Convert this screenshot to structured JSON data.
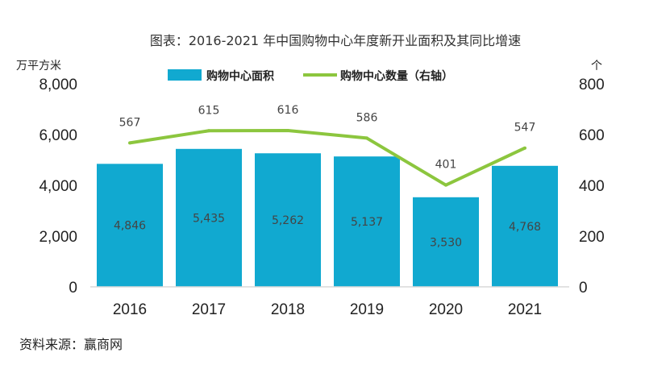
{
  "chart_data": {
    "type": "bar+line",
    "title": "图表：2016-2021 年中国购物中心年度新开业面积及其同比增速",
    "categories": [
      "2016",
      "2017",
      "2018",
      "2019",
      "2020",
      "2021"
    ],
    "series": [
      {
        "name": "购物中心面积",
        "type": "bar",
        "axis": "left",
        "color": "#11a9d0",
        "values": [
          4846,
          5435,
          5262,
          5137,
          3530,
          4768
        ],
        "labels": [
          "4,846",
          "5,435",
          "5,262",
          "5,137",
          "3,530",
          "4,768"
        ]
      },
      {
        "name": "购物中心数量（右轴）",
        "type": "line",
        "axis": "right",
        "color": "#8cc63e",
        "values": [
          567,
          615,
          616,
          586,
          401,
          547
        ],
        "labels": [
          "567",
          "615",
          "616",
          "586",
          "401",
          "547"
        ]
      }
    ],
    "left_axis": {
      "unit": "万平方米",
      "ylim": [
        0,
        8000
      ],
      "ticks": [
        "0",
        "2,000",
        "4,000",
        "6,000",
        "8,000"
      ]
    },
    "right_axis": {
      "unit": "个",
      "ylim": [
        0,
        800
      ],
      "ticks": [
        "0",
        "200",
        "400",
        "600",
        "800"
      ]
    },
    "grid": false,
    "legend": "top-center"
  },
  "source": "资料来源：赢商网"
}
